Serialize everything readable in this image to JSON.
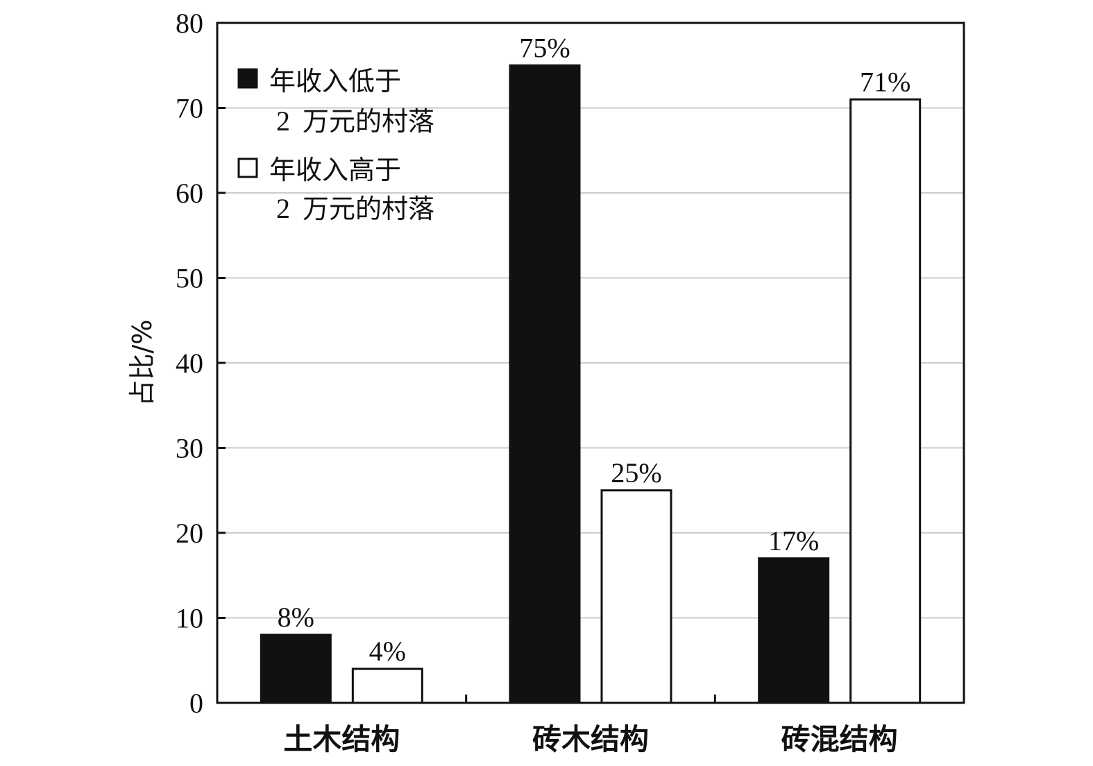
{
  "chart_data": {
    "type": "bar",
    "categories": [
      "土木结构",
      "砖木结构",
      "砖混结构"
    ],
    "series": [
      {
        "name_line1": "年收入低于",
        "name_line2_num": "2",
        "name_line2_rest": "万元的村落",
        "fill": "#111111",
        "values": [
          8,
          75,
          17
        ],
        "labels": [
          "8%",
          "75%",
          "17%"
        ]
      },
      {
        "name_line1": "年收入高于",
        "name_line2_num": "2",
        "name_line2_rest": "万元的村落",
        "fill": "#ffffff",
        "values": [
          4,
          25,
          71
        ],
        "labels": [
          "4%",
          "25%",
          "71%"
        ]
      }
    ],
    "ylabel": "占比/%",
    "ylim": [
      0,
      80
    ],
    "yticks": [
      "0",
      "10",
      "20",
      "30",
      "40",
      "50",
      "60",
      "70",
      "80"
    ],
    "grid": true,
    "grid_color": "#cccccc",
    "legend_position": "top-left"
  }
}
